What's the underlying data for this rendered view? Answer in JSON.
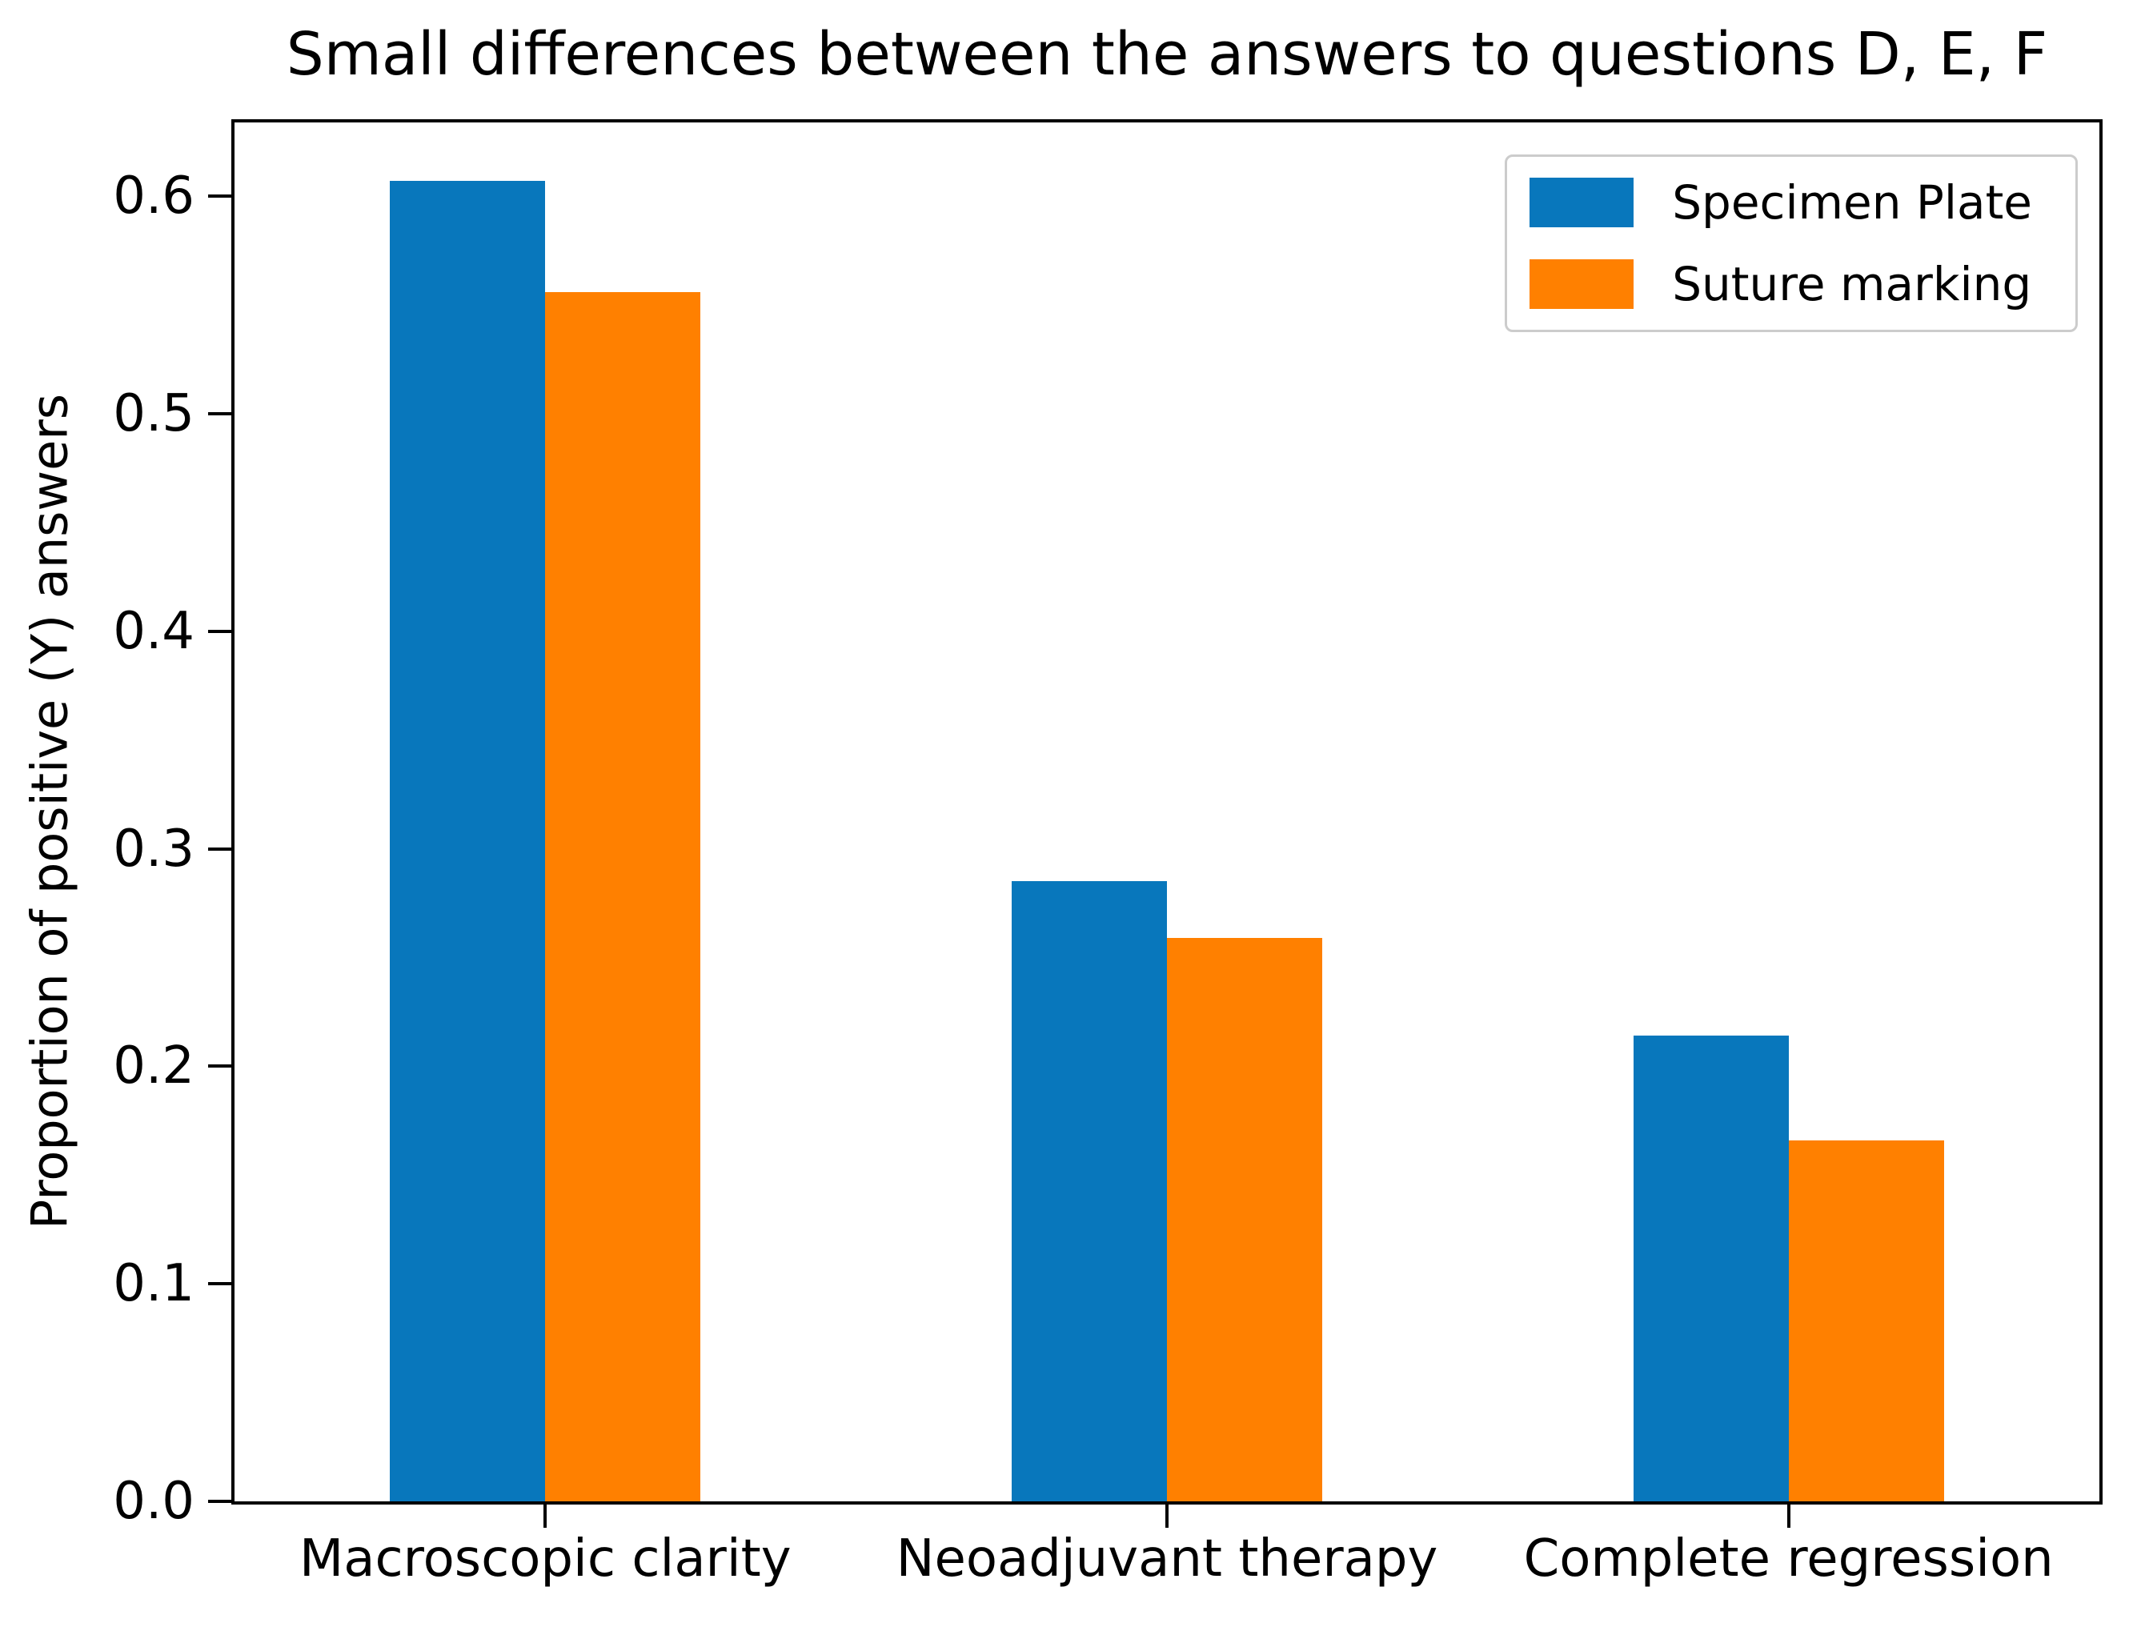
{
  "chart_data": {
    "type": "bar",
    "title": "Small differences between the answers to questions D, E, F",
    "ylabel": "Proportion of positive (Y) answers",
    "xlabel": "",
    "categories": [
      "Macroscopic clarity",
      "Neoadjuvant therapy",
      "Complete regression"
    ],
    "series": [
      {
        "name": "Specimen Plate",
        "color": "#0877bc",
        "values": [
          0.607,
          0.285,
          0.214
        ]
      },
      {
        "name": "Suture marking",
        "color": "#ff8000",
        "values": [
          0.556,
          0.259,
          0.166
        ]
      }
    ],
    "ylim": [
      0,
      0.634
    ],
    "xlim": [
      -0.5,
      2.5
    ],
    "yticks": [
      0.0,
      0.1,
      0.2,
      0.3,
      0.4,
      0.5,
      0.6
    ],
    "ytick_labels": [
      "0.0",
      "0.1",
      "0.2",
      "0.3",
      "0.4",
      "0.5",
      "0.6"
    ],
    "bar_width": 0.25,
    "grid": false,
    "legend_position": "upper right",
    "background_color": "#ffffff",
    "axis_color": "#000000"
  }
}
